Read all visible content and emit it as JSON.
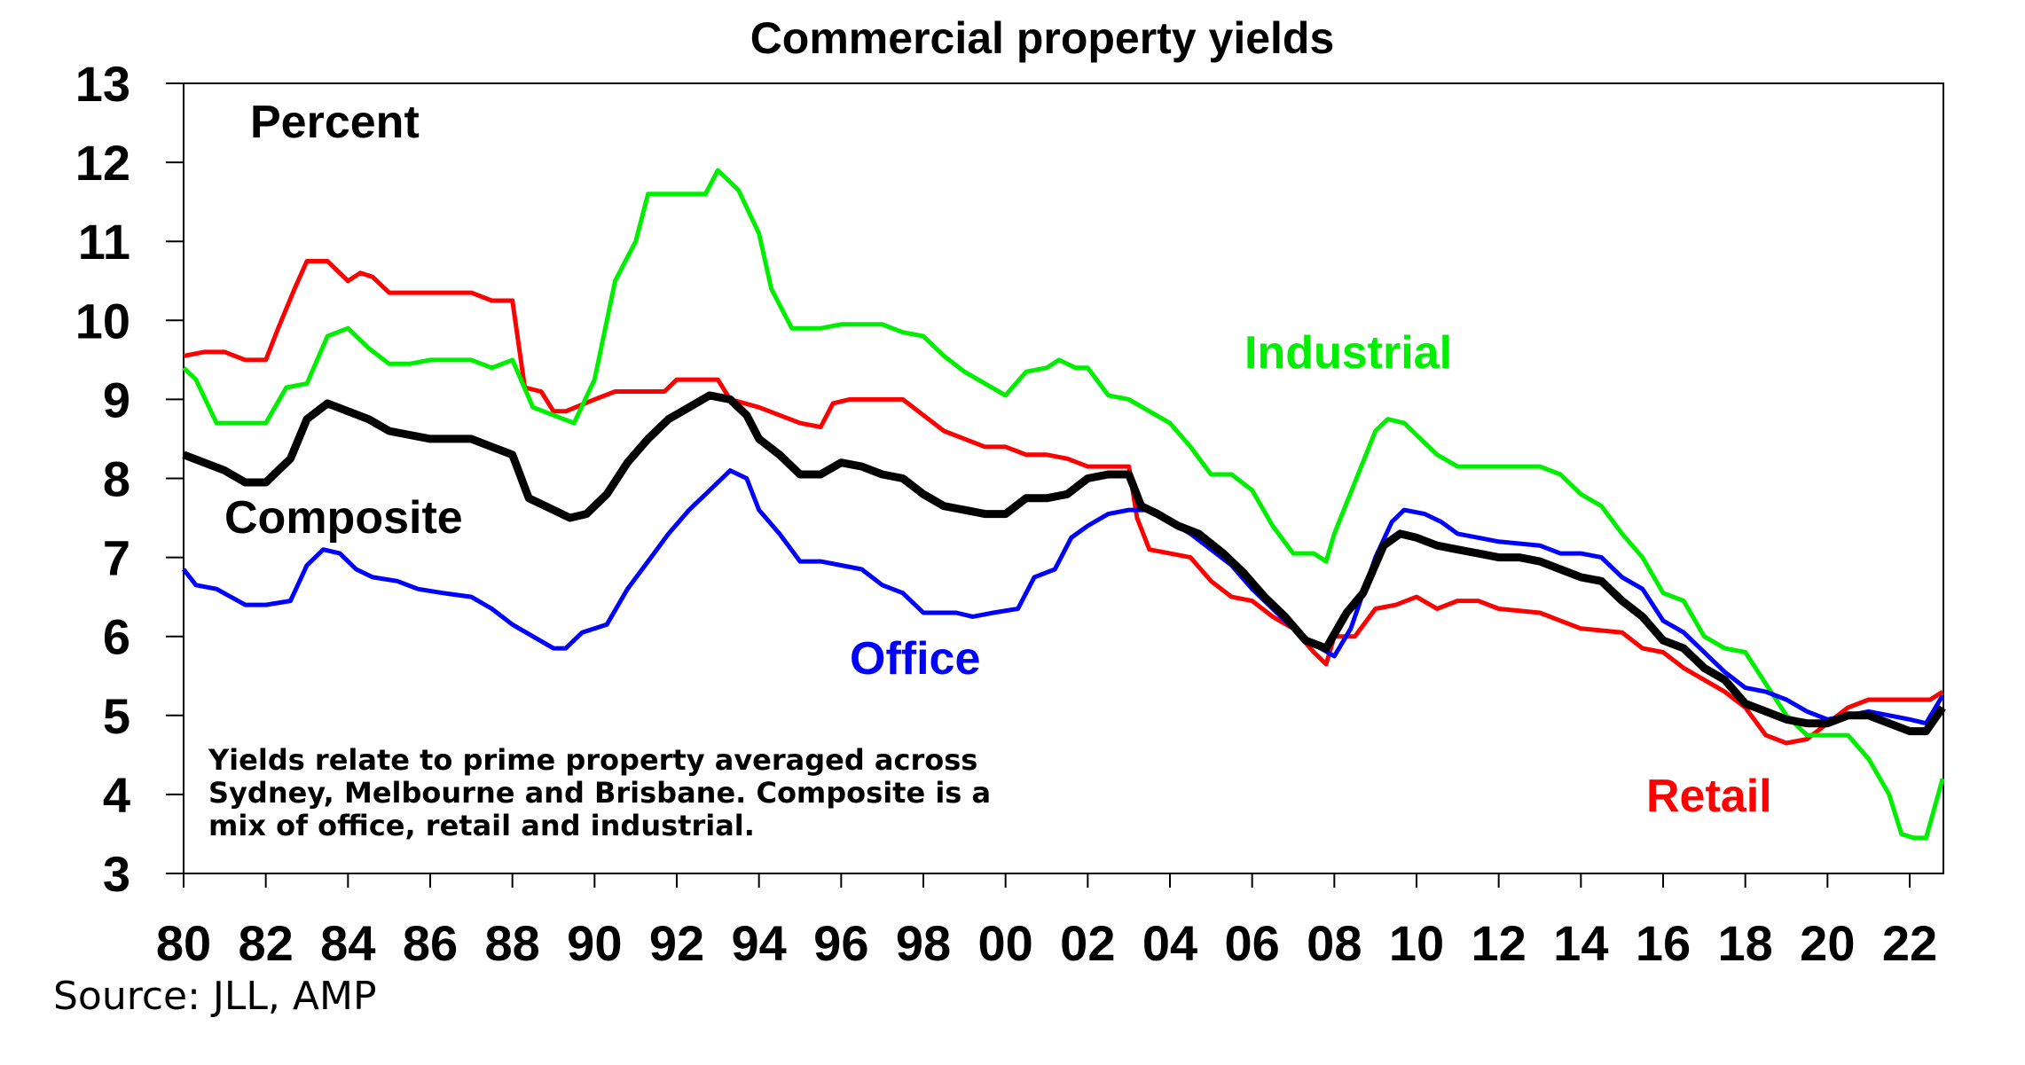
{
  "chart_data": {
    "type": "line",
    "title": "Commercial property yields",
    "ylabel": "Percent",
    "xlabel": "",
    "ylim": [
      3,
      13
    ],
    "xlim": [
      1980,
      2022.8
    ],
    "y_ticks": [
      3,
      4,
      5,
      6,
      7,
      8,
      9,
      10,
      11,
      12,
      13
    ],
    "x_ticks": [
      1980,
      1982,
      1984,
      1986,
      1988,
      1990,
      1992,
      1994,
      1996,
      1998,
      2000,
      2002,
      2004,
      2006,
      2008,
      2010,
      2012,
      2014,
      2016,
      2018,
      2020,
      2022
    ],
    "x_tick_labels": [
      "80",
      "82",
      "84",
      "86",
      "88",
      "90",
      "92",
      "94",
      "96",
      "98",
      "00",
      "02",
      "04",
      "06",
      "08",
      "10",
      "12",
      "14",
      "16",
      "18",
      "20",
      "22"
    ],
    "grid": false,
    "note": [
      "Yields relate to prime property averaged across",
      "Sydney, Melbourne and Brisbane. Composite is a",
      "mix of office, retail and industrial."
    ],
    "source": "Source: JLL, AMP",
    "series": [
      {
        "name": "Retail",
        "color": "#ff0000",
        "x": [
          1980,
          1980.5,
          1981,
          1981.5,
          1982,
          1982.3,
          1982.7,
          1983,
          1983.5,
          1984,
          1984.3,
          1984.6,
          1985,
          1986,
          1987,
          1987.5,
          1988,
          1988.3,
          1988.7,
          1989,
          1989.3,
          1990,
          1990.5,
          1991,
          1991.7,
          1992,
          1993,
          1993.3,
          1994,
          1994.5,
          1995,
          1995.5,
          1995.8,
          1996.2,
          1997,
          1997.5,
          1998,
          1998.5,
          1999,
          1999.5,
          2000,
          2000.5,
          2001,
          2001.5,
          2002,
          2003,
          2003.2,
          2003.5,
          2004,
          2004.5,
          2005,
          2005.5,
          2006,
          2006.5,
          2007,
          2007.5,
          2007.8,
          2008,
          2008.5,
          2009,
          2009.5,
          2010,
          2010.5,
          2011,
          2011.5,
          2012,
          2013,
          2013.5,
          2014,
          2015,
          2015.5,
          2016,
          2016.5,
          2017,
          2017.5,
          2018,
          2018.5,
          2019,
          2019.5,
          2020,
          2020.5,
          2021,
          2022,
          2022.5,
          2022.8
        ],
        "values": [
          9.55,
          9.6,
          9.6,
          9.5,
          9.5,
          9.9,
          10.4,
          10.75,
          10.75,
          10.5,
          10.6,
          10.55,
          10.35,
          10.35,
          10.35,
          10.25,
          10.25,
          9.15,
          9.1,
          8.85,
          8.85,
          9.0,
          9.1,
          9.1,
          9.1,
          9.25,
          9.25,
          9.0,
          8.9,
          8.8,
          8.7,
          8.65,
          8.95,
          9.0,
          9.0,
          9.0,
          8.8,
          8.6,
          8.5,
          8.4,
          8.4,
          8.3,
          8.3,
          8.25,
          8.15,
          8.15,
          7.5,
          7.1,
          7.05,
          7.0,
          6.7,
          6.5,
          6.45,
          6.25,
          6.1,
          5.8,
          5.65,
          6.0,
          6.0,
          6.35,
          6.4,
          6.5,
          6.35,
          6.45,
          6.45,
          6.35,
          6.3,
          6.2,
          6.1,
          6.05,
          5.85,
          5.8,
          5.6,
          5.45,
          5.3,
          5.1,
          4.75,
          4.65,
          4.7,
          4.9,
          5.1,
          5.2,
          5.2,
          5.2,
          5.3
        ]
      },
      {
        "name": "Industrial",
        "color": "#00ee00",
        "x": [
          1980,
          1980.3,
          1980.8,
          1981.5,
          1982,
          1982.5,
          1983,
          1983.5,
          1984,
          1984.5,
          1985,
          1985.5,
          1986,
          1987,
          1987.5,
          1988,
          1988.5,
          1989,
          1989.5,
          1990,
          1990.5,
          1991,
          1991.3,
          1991.7,
          1992,
          1992.7,
          1993,
          1993.5,
          1994,
          1994.3,
          1994.8,
          1995.5,
          1996,
          1997,
          1997.5,
          1998,
          1998.5,
          1999,
          1999.5,
          2000,
          2000.5,
          2001,
          2001.3,
          2001.7,
          2002,
          2002.5,
          2003,
          2003.5,
          2004,
          2004.5,
          2005,
          2005.5,
          2006,
          2006.5,
          2007,
          2007.5,
          2007.8,
          2008,
          2008.5,
          2009,
          2009.3,
          2009.7,
          2010,
          2010.5,
          2011,
          2012,
          2012.5,
          2013,
          2013.5,
          2014,
          2014.5,
          2015,
          2015.5,
          2016,
          2016.5,
          2017,
          2017.5,
          2018,
          2018.5,
          2019,
          2019.5,
          2020,
          2020.5,
          2021,
          2021.5,
          2021.8,
          2022.1,
          2022.4,
          2022.8
        ],
        "values": [
          9.4,
          9.25,
          8.7,
          8.7,
          8.7,
          9.15,
          9.2,
          9.8,
          9.9,
          9.65,
          9.45,
          9.45,
          9.5,
          9.5,
          9.4,
          9.5,
          8.9,
          8.8,
          8.7,
          9.25,
          10.5,
          11.0,
          11.6,
          11.6,
          11.6,
          11.6,
          11.9,
          11.65,
          11.1,
          10.4,
          9.9,
          9.9,
          9.95,
          9.95,
          9.85,
          9.8,
          9.55,
          9.35,
          9.2,
          9.05,
          9.35,
          9.4,
          9.5,
          9.4,
          9.4,
          9.05,
          9.0,
          8.85,
          8.7,
          8.4,
          8.05,
          8.05,
          7.85,
          7.4,
          7.05,
          7.05,
          6.95,
          7.3,
          7.95,
          8.6,
          8.75,
          8.7,
          8.55,
          8.3,
          8.15,
          8.15,
          8.15,
          8.15,
          8.05,
          7.8,
          7.65,
          7.3,
          7.0,
          6.55,
          6.45,
          6.0,
          5.85,
          5.8,
          5.4,
          5.0,
          4.75,
          4.75,
          4.75,
          4.45,
          4.0,
          3.5,
          3.45,
          3.45,
          4.2
        ]
      },
      {
        "name": "Office",
        "color": "#0000ff",
        "x": [
          1980,
          1980.3,
          1980.8,
          1981.5,
          1982,
          1982.6,
          1983,
          1983.4,
          1983.8,
          1984.2,
          1984.6,
          1985.2,
          1985.7,
          1986.3,
          1987,
          1987.5,
          1988,
          1988.5,
          1989,
          1989.3,
          1989.7,
          1990.3,
          1990.8,
          1991.3,
          1991.8,
          1992.3,
          1992.8,
          1993.3,
          1993.7,
          1994,
          1994.5,
          1995,
          1995.5,
          1996,
          1996.5,
          1997,
          1997.5,
          1998,
          1998.3,
          1998.8,
          1999.2,
          1999.7,
          2000.3,
          2000.7,
          2001.2,
          2001.6,
          2002,
          2002.5,
          2003,
          2003.5,
          2004,
          2004.5,
          2005,
          2005.5,
          2006,
          2006.5,
          2007,
          2007.5,
          2008,
          2008.4,
          2009,
          2009.4,
          2009.7,
          2010.2,
          2010.6,
          2011,
          2011.5,
          2012,
          2013,
          2013.5,
          2014,
          2014.5,
          2015,
          2015.5,
          2016,
          2016.5,
          2017,
          2017.5,
          2018,
          2018.5,
          2019,
          2019.5,
          2020,
          2020.5,
          2021,
          2021.5,
          2022,
          2022.4,
          2022.8
        ],
        "values": [
          6.85,
          6.65,
          6.6,
          6.4,
          6.4,
          6.45,
          6.9,
          7.1,
          7.05,
          6.85,
          6.75,
          6.7,
          6.6,
          6.55,
          6.5,
          6.35,
          6.15,
          6.0,
          5.85,
          5.85,
          6.05,
          6.15,
          6.6,
          6.95,
          7.3,
          7.6,
          7.85,
          8.1,
          8.0,
          7.6,
          7.3,
          6.95,
          6.95,
          6.9,
          6.85,
          6.65,
          6.55,
          6.3,
          6.3,
          6.3,
          6.25,
          6.3,
          6.35,
          6.75,
          6.85,
          7.25,
          7.4,
          7.55,
          7.6,
          7.6,
          7.45,
          7.3,
          7.1,
          6.9,
          6.6,
          6.35,
          6.1,
          5.9,
          5.75,
          6.1,
          7.0,
          7.45,
          7.6,
          7.55,
          7.45,
          7.3,
          7.25,
          7.2,
          7.15,
          7.05,
          7.05,
          7.0,
          6.75,
          6.6,
          6.2,
          6.05,
          5.8,
          5.55,
          5.35,
          5.3,
          5.2,
          5.05,
          4.95,
          5.0,
          5.05,
          5.0,
          4.95,
          4.9,
          5.25
        ]
      },
      {
        "name": "Composite",
        "color": "#000000",
        "x": [
          1980,
          1980.5,
          1981,
          1981.5,
          1982,
          1982.6,
          1983,
          1983.5,
          1984,
          1984.5,
          1985,
          1985.5,
          1986,
          1987,
          1987.5,
          1988,
          1988.4,
          1989,
          1989.4,
          1989.8,
          1990.3,
          1990.8,
          1991.3,
          1991.8,
          1992.3,
          1992.8,
          1993.3,
          1993.7,
          1994,
          1994.5,
          1995,
          1995.5,
          1996,
          1996.5,
          1997,
          1997.5,
          1998,
          1998.5,
          1999,
          1999.5,
          2000,
          2000.5,
          2001,
          2001.5,
          2002,
          2002.5,
          2003,
          2003.3,
          2003.7,
          2004.2,
          2004.7,
          2005.3,
          2005.8,
          2006.3,
          2006.8,
          2007.3,
          2007.8,
          2008.3,
          2008.7,
          2009.2,
          2009.6,
          2010,
          2010.5,
          2011,
          2011.5,
          2012,
          2012.5,
          2013,
          2013.5,
          2014,
          2014.5,
          2015,
          2015.5,
          2016,
          2016.5,
          2017,
          2017.5,
          2018,
          2018.5,
          2019,
          2019.5,
          2020,
          2020.5,
          2021,
          2021.5,
          2022,
          2022.4,
          2022.8
        ],
        "values": [
          8.3,
          8.2,
          8.1,
          7.95,
          7.95,
          8.25,
          8.75,
          8.95,
          8.85,
          8.75,
          8.6,
          8.55,
          8.5,
          8.5,
          8.4,
          8.3,
          7.75,
          7.6,
          7.5,
          7.55,
          7.8,
          8.2,
          8.5,
          8.75,
          8.9,
          9.05,
          9.0,
          8.8,
          8.5,
          8.3,
          8.05,
          8.05,
          8.2,
          8.15,
          8.05,
          8.0,
          7.8,
          7.65,
          7.6,
          7.55,
          7.55,
          7.75,
          7.75,
          7.8,
          8.0,
          8.05,
          8.05,
          7.65,
          7.55,
          7.4,
          7.3,
          7.05,
          6.8,
          6.5,
          6.25,
          5.95,
          5.85,
          6.3,
          6.55,
          7.15,
          7.3,
          7.25,
          7.15,
          7.1,
          7.05,
          7.0,
          7.0,
          6.95,
          6.85,
          6.75,
          6.7,
          6.45,
          6.25,
          5.95,
          5.85,
          5.6,
          5.45,
          5.15,
          5.05,
          4.95,
          4.9,
          4.9,
          5.0,
          5.0,
          4.9,
          4.8,
          4.8,
          5.1
        ]
      }
    ],
    "annotations": [
      {
        "text": "Percent",
        "color": "#000000"
      },
      {
        "text": "Composite",
        "color": "#000000"
      },
      {
        "text": "Industrial",
        "color": "#00ee00"
      },
      {
        "text": "Office",
        "color": "#0000ff"
      },
      {
        "text": "Retail",
        "color": "#ff0000"
      }
    ]
  }
}
